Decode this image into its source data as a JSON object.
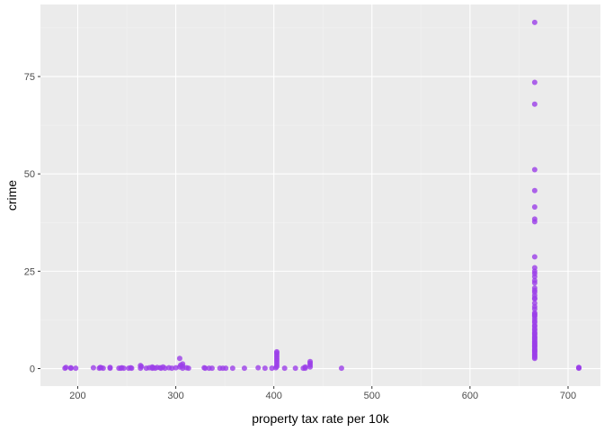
{
  "chart_data": {
    "type": "scatter",
    "xlabel": "property tax rate per 10k",
    "ylabel": "crime",
    "xlim": [
      162,
      733
    ],
    "ylim": [
      -4.5,
      93.5
    ],
    "x_ticks": [
      200,
      300,
      400,
      500,
      600,
      700
    ],
    "y_ticks": [
      0,
      25,
      50,
      75
    ],
    "grid": true,
    "legend": "none",
    "colors": {
      "point": "#9b3ee8",
      "panel": "#ebebeb",
      "grid_major": "#ffffff",
      "grid_minor": "#f2f2f2"
    },
    "points": [
      {
        "x": 187,
        "y": 0.1
      },
      {
        "x": 188,
        "y": 0.3
      },
      {
        "x": 193,
        "y": 0.1
      },
      {
        "x": 193,
        "y": 0.2
      },
      {
        "x": 198,
        "y": 0.1
      },
      {
        "x": 216,
        "y": 0.2
      },
      {
        "x": 222,
        "y": 0.1
      },
      {
        "x": 223,
        "y": 0.3
      },
      {
        "x": 224,
        "y": 0.2
      },
      {
        "x": 226,
        "y": 0.1
      },
      {
        "x": 233,
        "y": 0.1
      },
      {
        "x": 233,
        "y": 0.3
      },
      {
        "x": 242,
        "y": 0.1
      },
      {
        "x": 244,
        "y": 0.1
      },
      {
        "x": 245,
        "y": 0.2
      },
      {
        "x": 247,
        "y": 0.1
      },
      {
        "x": 252,
        "y": 0.1
      },
      {
        "x": 254,
        "y": 0.2
      },
      {
        "x": 255,
        "y": 0.1
      },
      {
        "x": 264,
        "y": 0.1
      },
      {
        "x": 264,
        "y": 0.8
      },
      {
        "x": 265,
        "y": 0.5
      },
      {
        "x": 270,
        "y": 0.1
      },
      {
        "x": 273,
        "y": 0.2
      },
      {
        "x": 276,
        "y": 0.1
      },
      {
        "x": 276,
        "y": 0.4
      },
      {
        "x": 277,
        "y": 0.2
      },
      {
        "x": 279,
        "y": 0.1
      },
      {
        "x": 281,
        "y": 0.3
      },
      {
        "x": 284,
        "y": 0.2
      },
      {
        "x": 285,
        "y": 0.1
      },
      {
        "x": 287,
        "y": 0.4
      },
      {
        "x": 289,
        "y": 0.1
      },
      {
        "x": 293,
        "y": 0.2
      },
      {
        "x": 296,
        "y": 0.1
      },
      {
        "x": 300,
        "y": 0.2
      },
      {
        "x": 304,
        "y": 0.4
      },
      {
        "x": 304,
        "y": 2.6
      },
      {
        "x": 305,
        "y": 0.9
      },
      {
        "x": 307,
        "y": 0.6
      },
      {
        "x": 307,
        "y": 1.2
      },
      {
        "x": 307,
        "y": 0.1
      },
      {
        "x": 311,
        "y": 0.2
      },
      {
        "x": 313,
        "y": 0.1
      },
      {
        "x": 329,
        "y": 0.2
      },
      {
        "x": 330,
        "y": 0.1
      },
      {
        "x": 334,
        "y": 0.1
      },
      {
        "x": 337,
        "y": 0.1
      },
      {
        "x": 345,
        "y": 0.1
      },
      {
        "x": 348,
        "y": 0.1
      },
      {
        "x": 351,
        "y": 0.1
      },
      {
        "x": 358,
        "y": 0.1
      },
      {
        "x": 370,
        "y": 0.1
      },
      {
        "x": 384,
        "y": 0.2
      },
      {
        "x": 391,
        "y": 0.1
      },
      {
        "x": 398,
        "y": 0.1
      },
      {
        "x": 402,
        "y": 0.2
      },
      {
        "x": 403,
        "y": 0.5
      },
      {
        "x": 403,
        "y": 1.0
      },
      {
        "x": 403,
        "y": 1.5
      },
      {
        "x": 403,
        "y": 2.0
      },
      {
        "x": 403,
        "y": 2.5
      },
      {
        "x": 403,
        "y": 3.0
      },
      {
        "x": 403,
        "y": 3.5
      },
      {
        "x": 403,
        "y": 4.0
      },
      {
        "x": 403,
        "y": 4.3
      },
      {
        "x": 411,
        "y": 0.1
      },
      {
        "x": 422,
        "y": 0.1
      },
      {
        "x": 430,
        "y": 0.1
      },
      {
        "x": 432,
        "y": 0.1
      },
      {
        "x": 432,
        "y": 0.4
      },
      {
        "x": 437,
        "y": 0.4
      },
      {
        "x": 437,
        "y": 0.9
      },
      {
        "x": 437,
        "y": 1.4
      },
      {
        "x": 437,
        "y": 1.8
      },
      {
        "x": 469,
        "y": 0.1
      },
      {
        "x": 666,
        "y": 88.9
      },
      {
        "x": 666,
        "y": 73.5
      },
      {
        "x": 666,
        "y": 67.9
      },
      {
        "x": 666,
        "y": 51.1
      },
      {
        "x": 666,
        "y": 45.7
      },
      {
        "x": 666,
        "y": 41.5
      },
      {
        "x": 666,
        "y": 38.4
      },
      {
        "x": 666,
        "y": 37.7
      },
      {
        "x": 666,
        "y": 28.7
      },
      {
        "x": 666,
        "y": 25.9
      },
      {
        "x": 666,
        "y": 25.0
      },
      {
        "x": 666,
        "y": 24.4
      },
      {
        "x": 666,
        "y": 23.6
      },
      {
        "x": 666,
        "y": 22.6
      },
      {
        "x": 666,
        "y": 22.0
      },
      {
        "x": 666,
        "y": 20.7
      },
      {
        "x": 666,
        "y": 20.1
      },
      {
        "x": 666,
        "y": 19.6
      },
      {
        "x": 666,
        "y": 18.8
      },
      {
        "x": 666,
        "y": 18.1
      },
      {
        "x": 666,
        "y": 17.9
      },
      {
        "x": 666,
        "y": 16.8
      },
      {
        "x": 666,
        "y": 15.9
      },
      {
        "x": 666,
        "y": 15.3
      },
      {
        "x": 666,
        "y": 14.3
      },
      {
        "x": 666,
        "y": 14.0
      },
      {
        "x": 666,
        "y": 13.7
      },
      {
        "x": 666,
        "y": 13.4
      },
      {
        "x": 666,
        "y": 12.8
      },
      {
        "x": 666,
        "y": 12.2
      },
      {
        "x": 666,
        "y": 11.8
      },
      {
        "x": 666,
        "y": 11.1
      },
      {
        "x": 666,
        "y": 10.8
      },
      {
        "x": 666,
        "y": 10.2
      },
      {
        "x": 666,
        "y": 9.9
      },
      {
        "x": 666,
        "y": 9.3
      },
      {
        "x": 666,
        "y": 9.0
      },
      {
        "x": 666,
        "y": 8.7
      },
      {
        "x": 666,
        "y": 8.2
      },
      {
        "x": 666,
        "y": 8.0
      },
      {
        "x": 666,
        "y": 7.7
      },
      {
        "x": 666,
        "y": 7.4
      },
      {
        "x": 666,
        "y": 7.0
      },
      {
        "x": 666,
        "y": 6.7
      },
      {
        "x": 666,
        "y": 6.4
      },
      {
        "x": 666,
        "y": 6.1
      },
      {
        "x": 666,
        "y": 5.8
      },
      {
        "x": 666,
        "y": 5.6
      },
      {
        "x": 666,
        "y": 5.2
      },
      {
        "x": 666,
        "y": 4.9
      },
      {
        "x": 666,
        "y": 4.7
      },
      {
        "x": 666,
        "y": 4.4
      },
      {
        "x": 666,
        "y": 4.2
      },
      {
        "x": 666,
        "y": 3.8
      },
      {
        "x": 666,
        "y": 3.5
      },
      {
        "x": 666,
        "y": 3.2
      },
      {
        "x": 666,
        "y": 2.9
      },
      {
        "x": 666,
        "y": 2.6
      },
      {
        "x": 711,
        "y": 0.1
      },
      {
        "x": 711,
        "y": 0.2
      },
      {
        "x": 711,
        "y": 0.3
      }
    ]
  }
}
